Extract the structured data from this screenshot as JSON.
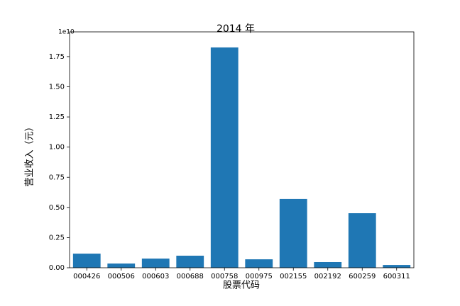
{
  "chart_data": {
    "type": "bar",
    "title": "2014 年",
    "x_label": "股票代码",
    "y_label": "营业收入（元）",
    "y_offset_label": "1e10",
    "categories": [
      "000426",
      "000506",
      "000603",
      "000688",
      "000758",
      "000975",
      "002155",
      "002192",
      "600259",
      "600311"
    ],
    "values": [
      1170000000,
      350000000,
      760000000,
      1000000000,
      18260000000,
      700000000,
      5700000000,
      470000000,
      4520000000,
      230000000
    ],
    "color": "#1f77b4",
    "ylim": [
      0,
      19550000000
    ],
    "yticks": [
      {
        "value": 0,
        "label": "0.00"
      },
      {
        "value": 2500000000,
        "label": "0.25"
      },
      {
        "value": 5000000000,
        "label": "0.50"
      },
      {
        "value": 7500000000,
        "label": "0.75"
      },
      {
        "value": 10000000000,
        "label": "1.00"
      },
      {
        "value": 12500000000,
        "label": "1.25"
      },
      {
        "value": 15000000000,
        "label": "1.50"
      },
      {
        "value": 17500000000,
        "label": "1.75"
      }
    ],
    "grid": false
  }
}
